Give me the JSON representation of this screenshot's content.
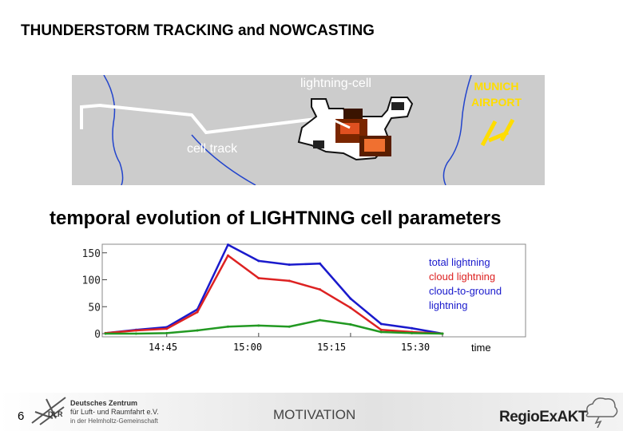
{
  "slide": {
    "title": "THUNDERSTORM TRACKING and NOWCASTING",
    "subtitle": "temporal evolution of LIGHTNING cell parameters",
    "page_number": "6"
  },
  "map": {
    "lightning_cell_label": "lightning-cell",
    "cell_track_label": "cell track",
    "airport_label_line1": "MUNICH",
    "airport_label_line2": "AIRPORT"
  },
  "footer": {
    "section_label": "MOTIVATION",
    "org_line1": "Deutsches Zentrum",
    "org_line2": "für Luft- und Raumfahrt e.V.",
    "org_line3": "in der Helmholtz-Gemeinschaft",
    "org_abbrev": "DLR",
    "project_logo": "RegioExAKT"
  },
  "chart_data": {
    "type": "line",
    "title": "temporal evolution of LIGHTNING cell parameters",
    "xlabel": "time",
    "ylabel": "",
    "x": [
      0,
      1,
      2,
      3,
      4,
      5,
      6,
      7,
      8,
      9,
      10,
      11
    ],
    "xtick_labels": [
      "14:45",
      "15:00",
      "15:15",
      "15:30"
    ],
    "xtick_positions": [
      2,
      5,
      8,
      11
    ],
    "ylim": [
      0,
      160
    ],
    "yticks": [
      0,
      50,
      100,
      150
    ],
    "series": [
      {
        "name": "total lightning",
        "color": "#1a1acc",
        "values": [
          1,
          7,
          12,
          45,
          165,
          135,
          128,
          130,
          65,
          18,
          10,
          0
        ]
      },
      {
        "name": "cloud lightning",
        "color": "#dd2222",
        "values": [
          1,
          6,
          9,
          40,
          145,
          103,
          98,
          82,
          48,
          7,
          3,
          0
        ]
      },
      {
        "name": "cloud-to-ground lightning",
        "color": "#229922",
        "values": [
          0,
          0,
          1,
          6,
          13,
          15,
          13,
          25,
          17,
          3,
          1,
          0
        ]
      }
    ],
    "legend_position": "top-right"
  }
}
